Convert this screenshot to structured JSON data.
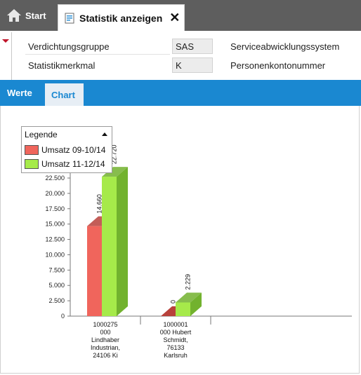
{
  "tabs": {
    "start_label": "Start",
    "active_label": "Statistik anzeigen",
    "close_symbol": "✕"
  },
  "form": {
    "rows": [
      {
        "label": "Verdichtungsgruppe",
        "value": "SAS",
        "description": "Serviceabwicklungssystem"
      },
      {
        "label": "Statistikmerkmal",
        "value": "K",
        "description": "Personenkontonummer"
      }
    ]
  },
  "subtabs": {
    "werte": "Werte",
    "chart": "Chart"
  },
  "colors": {
    "accent": "#1a88d1",
    "series1_front": "#f0655c",
    "series1_side": "#b8413b",
    "series2_front": "#a6ea4a",
    "series2_side": "#72b22e"
  },
  "icons": {
    "start": "home-icon",
    "active_tab": "report-icon",
    "close": "close-icon"
  },
  "chart_data": {
    "type": "bar",
    "legend_title": "Legende",
    "legend_placement": "top-left",
    "categories": [
      [
        "1000275",
        "000",
        "Lindhaber",
        "Industrian,",
        "24106 Ki"
      ],
      [
        "1000001",
        "000 Hubert",
        "Schmidt,",
        "76133",
        "Karlsruh"
      ]
    ],
    "series": [
      {
        "name": "Umsatz 09-10/14",
        "values": [
          14660,
          0
        ],
        "labels": [
          "14.660",
          "0"
        ]
      },
      {
        "name": "Umsatz 11-12/14",
        "values": [
          22720,
          2229
        ],
        "labels": [
          "22.720",
          "2.229"
        ]
      }
    ],
    "ylim": [
      0,
      25000
    ],
    "yticks": [
      0,
      2500,
      5000,
      7500,
      10000,
      12500,
      15000,
      17500,
      20000,
      22500
    ],
    "ytick_labels": [
      "0",
      "2.500",
      "5.000",
      "7.500",
      "10.000",
      "12.500",
      "15.000",
      "17.500",
      "20.000",
      "22.500"
    ]
  }
}
